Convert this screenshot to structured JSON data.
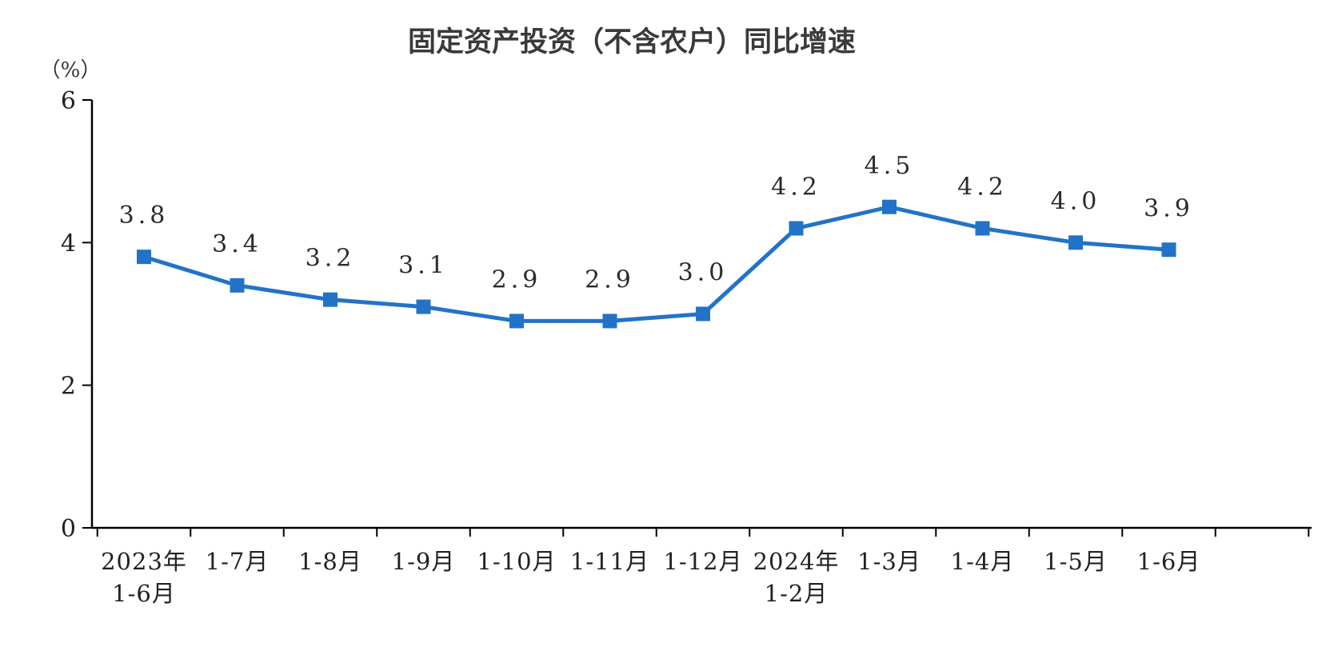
{
  "chart_data": {
    "type": "line",
    "title": "固定资产投资（不含农户）同比增速",
    "unit_label": "（%）",
    "categories": [
      [
        "2023年",
        "1-6月"
      ],
      [
        "1-7月"
      ],
      [
        "1-8月"
      ],
      [
        "1-9月"
      ],
      [
        "1-10月"
      ],
      [
        "1-11月"
      ],
      [
        "1-12月"
      ],
      [
        "2024年",
        "1-2月"
      ],
      [
        "1-3月"
      ],
      [
        "1-4月"
      ],
      [
        "1-5月"
      ],
      [
        "1-6月"
      ]
    ],
    "values": [
      3.8,
      3.4,
      3.2,
      3.1,
      2.9,
      2.9,
      3.0,
      4.2,
      4.5,
      4.2,
      4.0,
      3.9
    ],
    "point_labels": [
      "3.8",
      "3.4",
      "3.2",
      "3.1",
      "2.9",
      "2.9",
      "3.0",
      "4.2",
      "4.5",
      "4.2",
      "4.0",
      "3.9"
    ],
    "y_ticks": [
      0,
      2,
      4,
      6
    ],
    "ylim": [
      0,
      6
    ],
    "xlabel": "",
    "ylabel": "（%）",
    "line_color": "#2273c8",
    "marker": "square",
    "grid": "off",
    "legend": "none"
  }
}
